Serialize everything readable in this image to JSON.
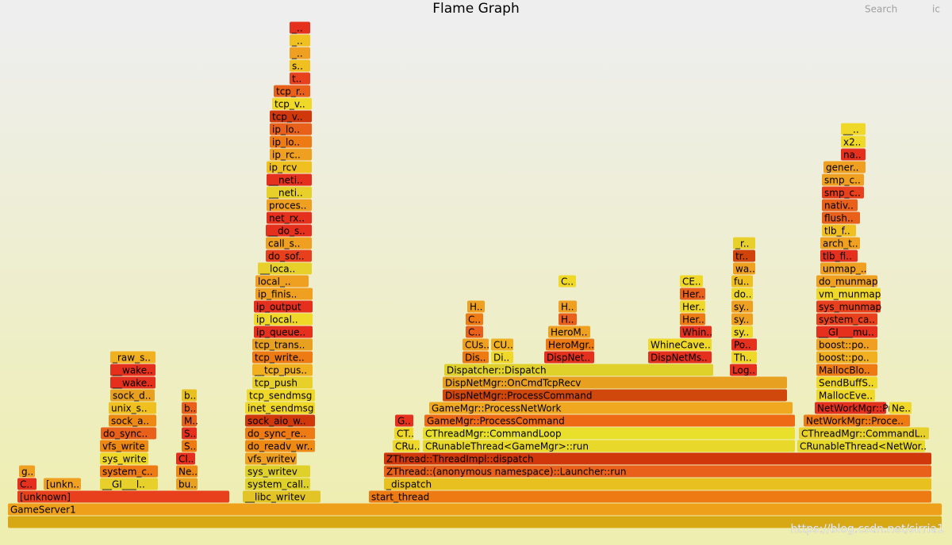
{
  "chart_data": {
    "type": "flame",
    "title": "Flame Graph",
    "search": "Search",
    "reset": "ic",
    "watermark": "https://blog.csdn.net/sirria1",
    "xlim": [
      0,
      1180
    ],
    "frames": [
      {
        "label": null,
        "depth": 0,
        "start": 0,
        "width": 1178,
        "color": "#d8a814"
      },
      {
        "label": "GameServer1",
        "depth": 1,
        "start": 0,
        "width": 1178,
        "color": "#eea01a"
      },
      {
        "label": "[unknown]",
        "depth": 2,
        "start": 12,
        "width": 268,
        "color": "#e8401c"
      },
      {
        "label": "__libc_writev",
        "depth": 2,
        "start": 296,
        "width": 99,
        "color": "#e3c426"
      },
      {
        "label": "start_thread",
        "depth": 2,
        "start": 455,
        "width": 710,
        "color": "#ee7a14"
      },
      {
        "label": "C..",
        "depth": 3,
        "start": 12,
        "width": 25,
        "color": "#e6301e"
      },
      {
        "label": "[unkn..",
        "depth": 3,
        "start": 45,
        "width": 48,
        "color": "#f0a020"
      },
      {
        "label": "__GI___l..",
        "depth": 3,
        "start": 116,
        "width": 74,
        "color": "#e8d02a"
      },
      {
        "label": "bu..",
        "depth": 3,
        "start": 212,
        "width": 28,
        "color": "#e8a020"
      },
      {
        "label": "system_call..",
        "depth": 3,
        "start": 299,
        "width": 83,
        "color": "#e0d02a"
      },
      {
        "label": "_dispatch",
        "depth": 3,
        "start": 474,
        "width": 691,
        "color": "#e8c020"
      },
      {
        "label": "g..",
        "depth": 4,
        "start": 14,
        "width": 21,
        "color": "#f0a020"
      },
      {
        "label": "system_c..",
        "depth": 4,
        "start": 116,
        "width": 74,
        "color": "#ee7a14"
      },
      {
        "label": "Ne..",
        "depth": 4,
        "start": 212,
        "width": 28,
        "color": "#ee8a14"
      },
      {
        "label": "sys_writev",
        "depth": 4,
        "start": 299,
        "width": 83,
        "color": "#e0d02a"
      },
      {
        "label": "ZThread::(anonymous namespace)::Launcher::run",
        "depth": 4,
        "start": 474,
        "width": 691,
        "color": "#e8601a"
      },
      {
        "label": "sys_write",
        "depth": 5,
        "start": 116,
        "width": 62,
        "color": "#f0d828"
      },
      {
        "label": "Cl..",
        "depth": 5,
        "start": 212,
        "width": 25,
        "color": "#e6301e"
      },
      {
        "label": "vfs_writev",
        "depth": 5,
        "start": 299,
        "width": 66,
        "color": "#f0a020"
      },
      {
        "label": "ZThread::ThreadImpl::dispatch",
        "depth": 5,
        "start": 474,
        "width": 691,
        "color": "#d0380c"
      },
      {
        "label": "vfs_write",
        "depth": 6,
        "start": 116,
        "width": 62,
        "color": "#ee8a14"
      },
      {
        "label": "S..",
        "depth": 6,
        "start": 219,
        "width": 20,
        "color": "#ee7a14"
      },
      {
        "label": "do_readv_wr..",
        "depth": 6,
        "start": 299,
        "width": 89,
        "color": "#ee8a14"
      },
      {
        "label": "CRu..",
        "depth": 6,
        "start": 485,
        "width": 35,
        "color": "#f0d828"
      },
      {
        "label": "CRunableThread<GameMgr>::run",
        "depth": 6,
        "start": 523,
        "width": 470,
        "color": "#e8d82a"
      },
      {
        "label": "CRunableThread<NetWor..",
        "depth": 6,
        "start": 995,
        "width": 162,
        "color": "#e8d82a"
      },
      {
        "label": "do_sync..",
        "depth": 7,
        "start": 117,
        "width": 71,
        "color": "#e8601a"
      },
      {
        "label": "S..",
        "depth": 7,
        "start": 219,
        "width": 20,
        "color": "#e6301e"
      },
      {
        "label": "do_sync_re..",
        "depth": 7,
        "start": 299,
        "width": 89,
        "color": "#ee7a14"
      },
      {
        "label": "CT..",
        "depth": 7,
        "start": 487,
        "width": 25,
        "color": "#f0d828"
      },
      {
        "label": "CThreadMgr::CommandLoop",
        "depth": 7,
        "start": 523,
        "width": 470,
        "color": "#e8e02a"
      },
      {
        "label": "CThreadMgr::CommandL..",
        "depth": 7,
        "start": 997,
        "width": 165,
        "color": "#e8d02a"
      },
      {
        "label": "sock_a..",
        "depth": 8,
        "start": 127,
        "width": 61,
        "color": "#ee8a14"
      },
      {
        "label": "M..",
        "depth": 8,
        "start": 219,
        "width": 20,
        "color": "#e8601a"
      },
      {
        "label": "sock_aio_w..",
        "depth": 8,
        "start": 299,
        "width": 89,
        "color": "#d0380c"
      },
      {
        "label": "G..",
        "depth": 8,
        "start": 488,
        "width": 24,
        "color": "#e6301e"
      },
      {
        "label": "GameMgr::ProcessCommand",
        "depth": 8,
        "start": 525,
        "width": 468,
        "color": "#ee6a14"
      },
      {
        "label": "NetWorkMgr::Proce..",
        "depth": 8,
        "start": 1003,
        "width": 135,
        "color": "#ee7a14"
      },
      {
        "label": "unix_s..",
        "depth": 9,
        "start": 127,
        "width": 61,
        "color": "#f0c020"
      },
      {
        "label": "b..",
        "depth": 9,
        "start": 219,
        "width": 20,
        "color": "#e8601a"
      },
      {
        "label": "inet_sendmsg",
        "depth": 9,
        "start": 299,
        "width": 89,
        "color": "#f0d828"
      },
      {
        "label": "GameMgr::ProcessNetWork",
        "depth": 9,
        "start": 531,
        "width": 459,
        "color": "#f0a820"
      },
      {
        "label": "NetWorkMgr::Pr..",
        "depth": 9,
        "start": 1017,
        "width": 91,
        "color": "#e6301e"
      },
      {
        "label": "Ne..",
        "depth": 9,
        "start": 1111,
        "width": 29,
        "color": "#f0d828"
      },
      {
        "label": "sock_d..",
        "depth": 10,
        "start": 129,
        "width": 57,
        "color": "#e8a020"
      },
      {
        "label": "b..",
        "depth": 10,
        "start": 219,
        "width": 20,
        "color": "#e8c020"
      },
      {
        "label": "tcp_sendmsg",
        "depth": 10,
        "start": 301,
        "width": 87,
        "color": "#f0d828"
      },
      {
        "label": "DispNetMgr::ProcessCommand",
        "depth": 10,
        "start": 548,
        "width": 435,
        "color": "#d0480c"
      },
      {
        "label": "MallocEve..",
        "depth": 10,
        "start": 1019,
        "width": 75,
        "color": "#f0d828"
      },
      {
        "label": "__wake..",
        "depth": 11,
        "start": 129,
        "width": 58,
        "color": "#e6301e"
      },
      {
        "label": "tcp_push",
        "depth": 11,
        "start": 308,
        "width": 77,
        "color": "#e8d02a"
      },
      {
        "label": "DispNetMgr::OnCmdTcpRecv",
        "depth": 11,
        "start": 548,
        "width": 435,
        "color": "#e8a020"
      },
      {
        "label": "SendBuffS..",
        "depth": 11,
        "start": 1019,
        "width": 78,
        "color": "#f0d828"
      },
      {
        "label": "__wake..",
        "depth": 12,
        "start": 129,
        "width": 58,
        "color": "#e6301e"
      },
      {
        "label": "__tcp_pus..",
        "depth": 12,
        "start": 308,
        "width": 77,
        "color": "#f0b020"
      },
      {
        "label": "Dispatcher::Dispatch",
        "depth": 12,
        "start": 550,
        "width": 340,
        "color": "#e0d02a"
      },
      {
        "label": "Log..",
        "depth": 12,
        "start": 910,
        "width": 35,
        "color": "#e6301e"
      },
      {
        "label": "MallocBlo..",
        "depth": 12,
        "start": 1019,
        "width": 78,
        "color": "#ee7a14"
      },
      {
        "label": "_raw_s..",
        "depth": 13,
        "start": 129,
        "width": 58,
        "color": "#f0b020"
      },
      {
        "label": "tcp_write..",
        "depth": 13,
        "start": 308,
        "width": 77,
        "color": "#ee7a14"
      },
      {
        "label": "Dis..",
        "depth": 13,
        "start": 573,
        "width": 34,
        "color": "#ee7a14"
      },
      {
        "label": "Di..",
        "depth": 13,
        "start": 609,
        "width": 29,
        "color": "#f0d828"
      },
      {
        "label": "DispNet..",
        "depth": 13,
        "start": 676,
        "width": 64,
        "color": "#e6301e"
      },
      {
        "label": "DispNetMs..",
        "depth": 13,
        "start": 807,
        "width": 81,
        "color": "#e6301e"
      },
      {
        "label": "Th..",
        "depth": 13,
        "start": 912,
        "width": 33,
        "color": "#f0d828"
      },
      {
        "label": "boost::po..",
        "depth": 13,
        "start": 1019,
        "width": 78,
        "color": "#f0b020"
      },
      {
        "label": "tcp_trans..",
        "depth": 14,
        "start": 308,
        "width": 77,
        "color": "#e8a020"
      },
      {
        "label": "CUs..",
        "depth": 14,
        "start": 573,
        "width": 34,
        "color": "#f0a020"
      },
      {
        "label": "CU..",
        "depth": 14,
        "start": 609,
        "width": 29,
        "color": "#f0b020"
      },
      {
        "label": "HeroMgr..",
        "depth": 14,
        "start": 678,
        "width": 62,
        "color": "#ee7a14"
      },
      {
        "label": "WhineCave..",
        "depth": 14,
        "start": 807,
        "width": 81,
        "color": "#f0d828"
      },
      {
        "label": "Po..",
        "depth": 14,
        "start": 912,
        "width": 33,
        "color": "#e6301e"
      },
      {
        "label": "boost::po..",
        "depth": 14,
        "start": 1019,
        "width": 78,
        "color": "#f0a020"
      },
      {
        "label": "ip_queue..",
        "depth": 15,
        "start": 310,
        "width": 75,
        "color": "#e6301e"
      },
      {
        "label": "C..",
        "depth": 15,
        "start": 577,
        "width": 23,
        "color": "#e8601a"
      },
      {
        "label": "HeroM..",
        "depth": 15,
        "start": 681,
        "width": 54,
        "color": "#f0a020"
      },
      {
        "label": "Whin..",
        "depth": 15,
        "start": 847,
        "width": 41,
        "color": "#e6301e"
      },
      {
        "label": "sy..",
        "depth": 15,
        "start": 912,
        "width": 28,
        "color": "#f0d828"
      },
      {
        "label": "__GI___mu..",
        "depth": 15,
        "start": 1019,
        "width": 78,
        "color": "#e6301e"
      },
      {
        "label": "ip_local..",
        "depth": 16,
        "start": 310,
        "width": 75,
        "color": "#f0d828"
      },
      {
        "label": "C..",
        "depth": 16,
        "start": 577,
        "width": 23,
        "color": "#ee7a14"
      },
      {
        "label": "H..",
        "depth": 16,
        "start": 694,
        "width": 24,
        "color": "#e8601a"
      },
      {
        "label": "Her..",
        "depth": 16,
        "start": 847,
        "width": 33,
        "color": "#ee7a14"
      },
      {
        "label": "sy..",
        "depth": 16,
        "start": 912,
        "width": 28,
        "color": "#f0a020"
      },
      {
        "label": "system_ca..",
        "depth": 16,
        "start": 1019,
        "width": 78,
        "color": "#e8401c"
      },
      {
        "label": "ip_output",
        "depth": 17,
        "start": 310,
        "width": 75,
        "color": "#e6301e"
      },
      {
        "label": "H..",
        "depth": 17,
        "start": 579,
        "width": 23,
        "color": "#f0a020"
      },
      {
        "label": "H..",
        "depth": 17,
        "start": 694,
        "width": 24,
        "color": "#f0a020"
      },
      {
        "label": "Her..",
        "depth": 17,
        "start": 847,
        "width": 33,
        "color": "#f0d828"
      },
      {
        "label": "sy..",
        "depth": 17,
        "start": 912,
        "width": 28,
        "color": "#f0a020"
      },
      {
        "label": "sys_munmap",
        "depth": 17,
        "start": 1019,
        "width": 82,
        "color": "#e8401c"
      },
      {
        "label": "ip_finis..",
        "depth": 18,
        "start": 312,
        "width": 73,
        "color": "#f0a020"
      },
      {
        "label": "Her..",
        "depth": 18,
        "start": 847,
        "width": 33,
        "color": "#e8601a"
      },
      {
        "label": "do..",
        "depth": 18,
        "start": 912,
        "width": 28,
        "color": "#f0d828"
      },
      {
        "label": "vm_munmap",
        "depth": 18,
        "start": 1019,
        "width": 82,
        "color": "#f0d828"
      },
      {
        "label": "local_..",
        "depth": 19,
        "start": 312,
        "width": 68,
        "color": "#f0a020"
      },
      {
        "label": "C..",
        "depth": 19,
        "start": 694,
        "width": 23,
        "color": "#f0d828"
      },
      {
        "label": "CE..",
        "depth": 19,
        "start": 847,
        "width": 30,
        "color": "#f0d828"
      },
      {
        "label": "fu..",
        "depth": 19,
        "start": 912,
        "width": 28,
        "color": "#f0c020"
      },
      {
        "label": "do_munmap",
        "depth": 19,
        "start": 1019,
        "width": 78,
        "color": "#f0a020"
      },
      {
        "label": "__loca..",
        "depth": 20,
        "start": 315,
        "width": 69,
        "color": "#e8d02a"
      },
      {
        "label": "wa..",
        "depth": 20,
        "start": 914,
        "width": 29,
        "color": "#f0a020"
      },
      {
        "label": "unmap_..",
        "depth": 20,
        "start": 1024,
        "width": 59,
        "color": "#f0a020"
      },
      {
        "label": "do_sof..",
        "depth": 21,
        "start": 325,
        "width": 59,
        "color": "#e8401c"
      },
      {
        "label": "tr..",
        "depth": 21,
        "start": 914,
        "width": 29,
        "color": "#d0440c"
      },
      {
        "label": "tlb_fi..",
        "depth": 21,
        "start": 1024,
        "width": 48,
        "color": "#e6301e"
      },
      {
        "label": "call_s..",
        "depth": 22,
        "start": 325,
        "width": 59,
        "color": "#f0a020"
      },
      {
        "label": "_r..",
        "depth": 22,
        "start": 914,
        "width": 29,
        "color": "#e8d02a"
      },
      {
        "label": "arch_t..",
        "depth": 22,
        "start": 1024,
        "width": 51,
        "color": "#f0a020"
      },
      {
        "label": "__do_s..",
        "depth": 23,
        "start": 325,
        "width": 59,
        "color": "#e6301e"
      },
      {
        "label": "tlb_f..",
        "depth": 23,
        "start": 1026,
        "width": 44,
        "color": "#f0c020"
      },
      {
        "label": "net_rx..",
        "depth": 24,
        "start": 326,
        "width": 58,
        "color": "#e6301e"
      },
      {
        "label": "flush..",
        "depth": 24,
        "start": 1026,
        "width": 49,
        "color": "#e8601a"
      },
      {
        "label": "proces..",
        "depth": 25,
        "start": 326,
        "width": 58,
        "color": "#f0a020"
      },
      {
        "label": "nativ..",
        "depth": 25,
        "start": 1026,
        "width": 46,
        "color": "#e8601a"
      },
      {
        "label": "__neti..",
        "depth": 26,
        "start": 326,
        "width": 58,
        "color": "#e8d02a"
      },
      {
        "label": "smp_c..",
        "depth": 26,
        "start": 1026,
        "width": 54,
        "color": "#e8401c"
      },
      {
        "label": "__neti..",
        "depth": 27,
        "start": 326,
        "width": 58,
        "color": "#e6301e"
      },
      {
        "label": "smp_c..",
        "depth": 27,
        "start": 1026,
        "width": 54,
        "color": "#f0a020"
      },
      {
        "label": "ip_rcv",
        "depth": 28,
        "start": 326,
        "width": 58,
        "color": "#f0c020"
      },
      {
        "label": "gener..",
        "depth": 28,
        "start": 1028,
        "width": 54,
        "color": "#f0a020"
      },
      {
        "label": "ip_rc..",
        "depth": 29,
        "start": 330,
        "width": 54,
        "color": "#f0a020"
      },
      {
        "label": "na..",
        "depth": 29,
        "start": 1050,
        "width": 32,
        "color": "#e6301e"
      },
      {
        "label": "ip_lo..",
        "depth": 30,
        "start": 330,
        "width": 54,
        "color": "#ee7a14"
      },
      {
        "label": "x2..",
        "depth": 30,
        "start": 1050,
        "width": 32,
        "color": "#f0d828"
      },
      {
        "label": "ip_lo..",
        "depth": 31,
        "start": 330,
        "width": 54,
        "color": "#e8601a"
      },
      {
        "label": "__..",
        "depth": 31,
        "start": 1050,
        "width": 32,
        "color": "#f0d828"
      },
      {
        "label": "tcp_v..",
        "depth": 32,
        "start": 330,
        "width": 54,
        "color": "#d0380c"
      },
      {
        "label": "tcp_v..",
        "depth": 33,
        "start": 333,
        "width": 51,
        "color": "#f0d828"
      },
      {
        "label": "tcp_r..",
        "depth": 34,
        "start": 335,
        "width": 47,
        "color": "#e8601a"
      },
      {
        "label": "t..",
        "depth": 35,
        "start": 355,
        "width": 27,
        "color": "#e8401c"
      },
      {
        "label": "s..",
        "depth": 36,
        "start": 355,
        "width": 27,
        "color": "#f0c020"
      },
      {
        "label": "_..",
        "depth": 37,
        "start": 355,
        "width": 27,
        "color": "#f0a020"
      },
      {
        "label": "_..",
        "depth": 38,
        "start": 355,
        "width": 27,
        "color": "#f0c020"
      },
      {
        "label": "_..",
        "depth": 39,
        "start": 355,
        "width": 27,
        "color": "#e6301e"
      }
    ]
  }
}
